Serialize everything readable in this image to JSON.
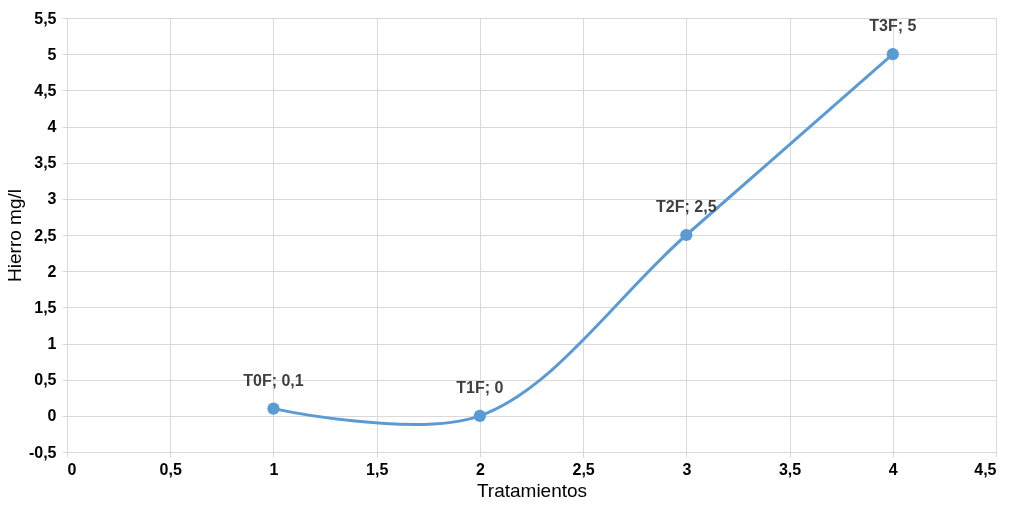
{
  "chart_data": {
    "type": "line",
    "xlabel": "Tratamientos",
    "ylabel": "Hierro mg/l",
    "x": [
      1,
      2,
      3,
      4
    ],
    "series": [
      {
        "color": "#5b9bd5",
        "values": [
          0.1,
          0,
          2.5,
          5
        ],
        "value_labels": [
          "T0F; 0,1",
          "T1F; 0",
          "T2F; 2,5",
          "T3F; 5"
        ]
      }
    ],
    "xlim": [
      0,
      4.5
    ],
    "xticks": [
      0,
      {
        "value": 0.5,
        "label": "0,5"
      },
      1,
      {
        "value": 1.5,
        "label": "1,5"
      },
      2,
      {
        "value": 2.5,
        "label": "2,5"
      },
      3,
      {
        "value": 3.5,
        "label": "3,5"
      },
      4,
      {
        "value": 4.5,
        "label": "4,5"
      }
    ],
    "ylim": [
      -0.5,
      5.5
    ],
    "yticks": [
      {
        "value": -0.5,
        "label": "-0,5"
      },
      0,
      {
        "value": 0.5,
        "label": "0,5"
      },
      1,
      {
        "value": 1.5,
        "label": "1,5"
      },
      2,
      {
        "value": 2.5,
        "label": "2,5"
      },
      3,
      {
        "value": 3.5,
        "label": "3,5"
      },
      4,
      {
        "value": 4.5,
        "label": "4,5"
      },
      5,
      {
        "value": 5.5,
        "label": "5,5"
      }
    ],
    "grid": true,
    "marker": "circle",
    "line_style": "solid"
  }
}
